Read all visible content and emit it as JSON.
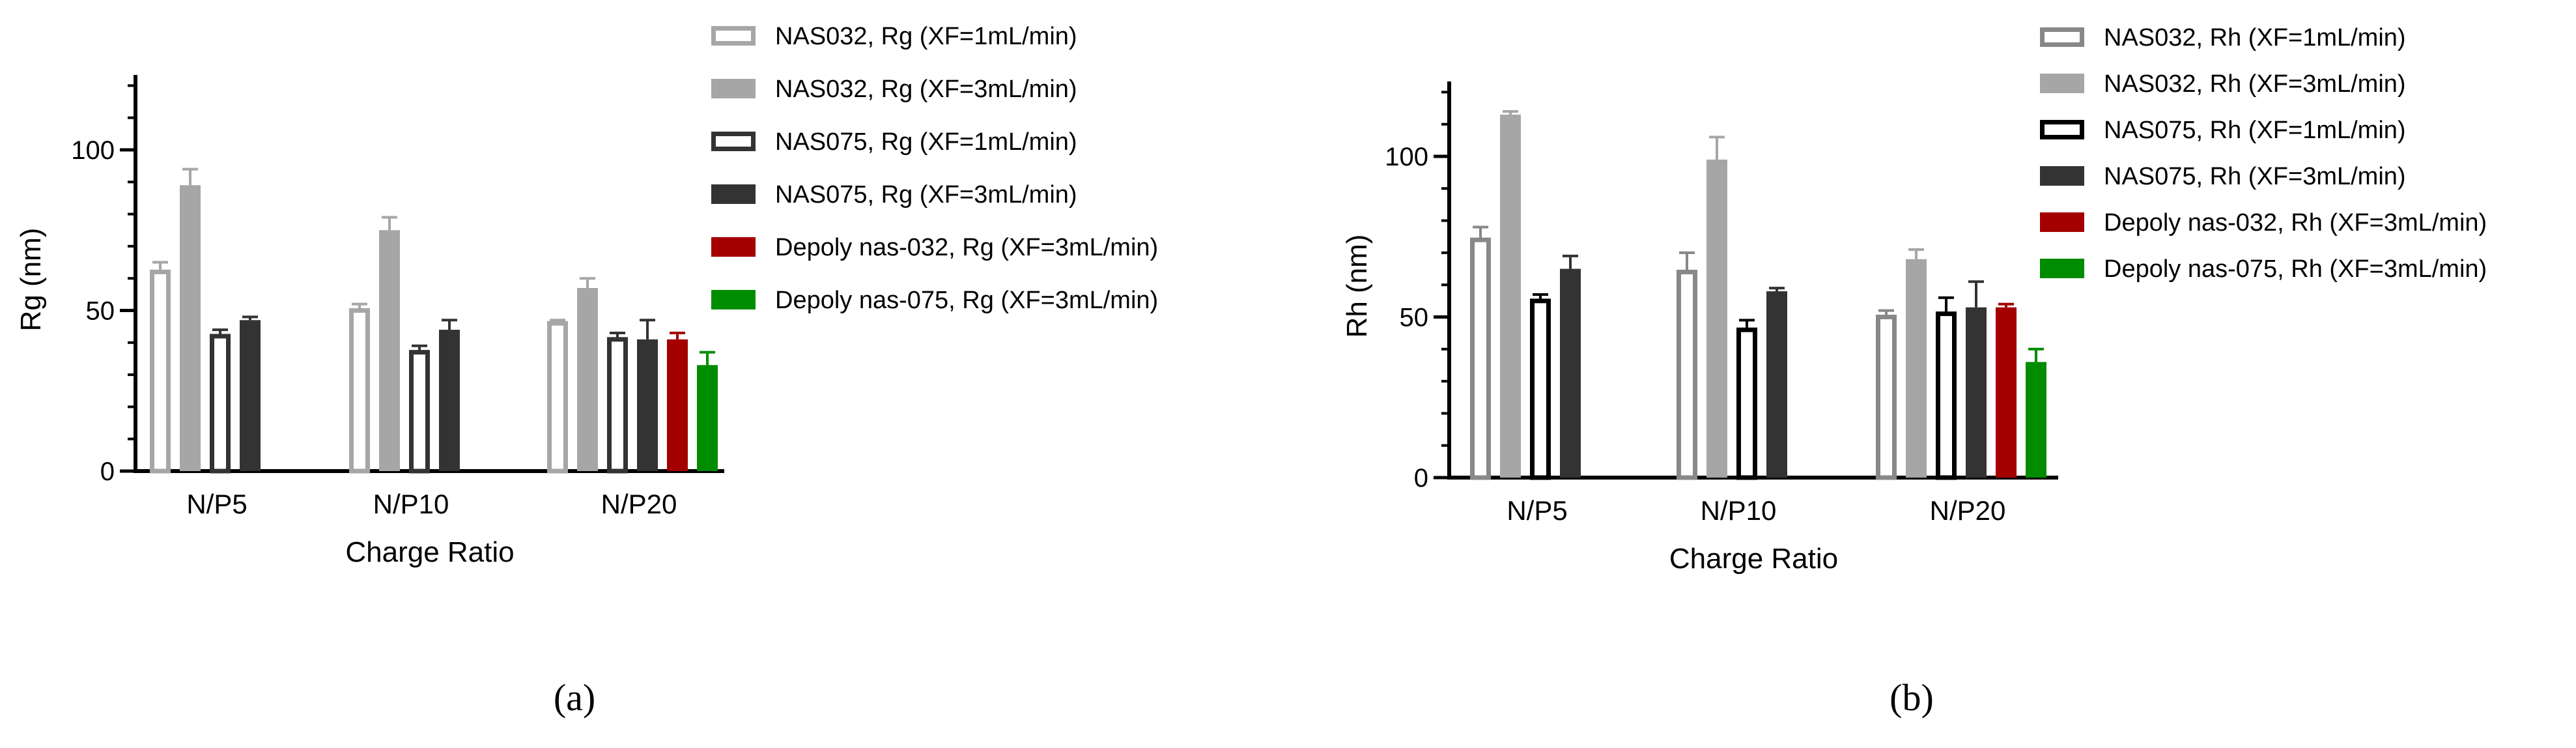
{
  "chart_data": [
    {
      "type": "bar",
      "panel_label": "(a)",
      "title": "",
      "xlabel": "Charge Ratio",
      "ylabel": "Rg (nm)",
      "categories": [
        "N/P5",
        "N/P10",
        "N/P20"
      ],
      "ylim": [
        0,
        120
      ],
      "yticks": [
        0,
        50,
        100
      ],
      "grid": false,
      "legend_position": "right",
      "series": [
        {
          "name": "NAS032, Rg (XF=1mL/min)",
          "style": "outline",
          "color": "#a6a6a6",
          "values": [
            62,
            50,
            46
          ],
          "errors": [
            3,
            2,
            1
          ]
        },
        {
          "name": "NAS032, Rg (XF=3mL/min)",
          "style": "filled",
          "color": "#a6a6a6",
          "values": [
            89,
            75,
            57
          ],
          "errors": [
            5,
            4,
            3
          ]
        },
        {
          "name": "NAS075, Rg (XF=1mL/min)",
          "style": "outline",
          "color": "#333333",
          "values": [
            42,
            37,
            41
          ],
          "errors": [
            2,
            2,
            2
          ]
        },
        {
          "name": "NAS075, Rg (XF=3mL/min)",
          "style": "filled",
          "color": "#333333",
          "values": [
            47,
            44,
            41
          ],
          "errors": [
            1,
            3,
            6
          ]
        },
        {
          "name": "Depoly nas-032, Rg (XF=3mL/min)",
          "style": "filled",
          "color": "#a50000",
          "values": [
            null,
            null,
            41
          ],
          "errors": [
            null,
            null,
            2
          ]
        },
        {
          "name": "Depoly nas-075, Rg (XF=3mL/min)",
          "style": "filled",
          "color": "#008c00",
          "values": [
            null,
            null,
            33
          ],
          "errors": [
            null,
            null,
            4
          ]
        }
      ]
    },
    {
      "type": "bar",
      "panel_label": "(b)",
      "title": "",
      "xlabel": "Charge Ratio",
      "ylabel": "Rh (nm)",
      "categories": [
        "N/P5",
        "N/P10",
        "N/P20"
      ],
      "ylim": [
        0,
        120
      ],
      "yticks": [
        0,
        50,
        100
      ],
      "grid": false,
      "legend_position": "right",
      "series": [
        {
          "name": "NAS032, Rh (XF=1mL/min)",
          "style": "outline",
          "color": "#888888",
          "values": [
            74,
            64,
            50
          ],
          "errors": [
            4,
            6,
            2
          ]
        },
        {
          "name": "NAS032, Rh (XF=3mL/min)",
          "style": "filled",
          "color": "#a6a6a6",
          "values": [
            113,
            99,
            68
          ],
          "errors": [
            1,
            7,
            3
          ]
        },
        {
          "name": "NAS075, Rh (XF=1mL/min)",
          "style": "outline",
          "color": "#000000",
          "values": [
            55,
            46,
            51
          ],
          "errors": [
            2,
            3,
            5
          ]
        },
        {
          "name": "NAS075, Rh (XF=3mL/min)",
          "style": "filled",
          "color": "#333333",
          "values": [
            65,
            58,
            53
          ],
          "errors": [
            4,
            1,
            8
          ]
        },
        {
          "name": "Depoly nas-032, Rh (XF=3mL/min)",
          "style": "filled",
          "color": "#a50000",
          "values": [
            null,
            null,
            53
          ],
          "errors": [
            null,
            null,
            1
          ]
        },
        {
          "name": "Depoly nas-075, Rh (XF=3mL/min)",
          "style": "filled",
          "color": "#008c00",
          "values": [
            null,
            null,
            36
          ],
          "errors": [
            null,
            null,
            4
          ]
        }
      ]
    }
  ]
}
